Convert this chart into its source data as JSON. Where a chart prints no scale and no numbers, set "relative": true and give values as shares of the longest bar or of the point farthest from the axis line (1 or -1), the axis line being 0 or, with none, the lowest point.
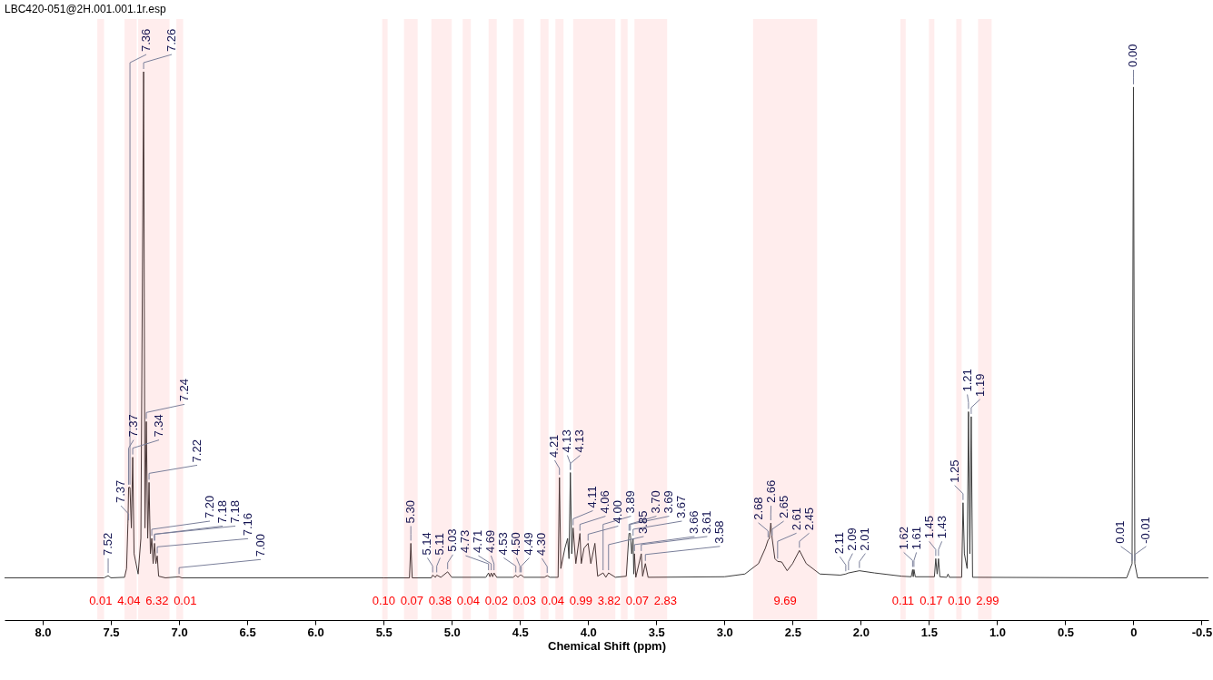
{
  "chart_data": {
    "type": "line",
    "title": "LBC420-051@2H.001.001.1r.esp",
    "xlabel": "Chemical Shift (ppm)",
    "relative": true,
    "color": "#3c3c3c",
    "xlim": [
      8.28,
      -0.55
    ],
    "xticks": [
      {
        "value": 8,
        "label": "8.0"
      },
      7.5,
      {
        "value": 7,
        "label": "7.0"
      },
      6.5,
      {
        "value": 6,
        "label": "6.0"
      },
      5.5,
      {
        "value": 5,
        "label": "5.0"
      },
      4.5,
      {
        "value": 4,
        "label": "4.0"
      },
      3.5,
      {
        "value": 3,
        "label": "3.0"
      },
      2.5,
      {
        "value": 2,
        "label": "2.0"
      },
      1.5,
      {
        "value": 1,
        "label": "1.0"
      },
      0.5,
      0,
      -0.5
    ],
    "x": [
      8.28,
      7.55,
      7.52,
      7.5,
      7.4,
      7.385,
      7.375,
      7.37,
      7.36,
      7.35,
      7.34,
      7.33,
      7.3,
      7.28,
      7.26,
      7.25,
      7.24,
      7.23,
      7.22,
      7.21,
      7.2,
      7.19,
      7.18,
      7.17,
      7.16,
      7.15,
      7.1,
      7.0,
      6.98,
      5.5,
      5.31,
      5.3,
      5.29,
      5.15,
      5.14,
      5.12,
      5.11,
      5.08,
      5.03,
      5.0,
      4.75,
      4.73,
      4.72,
      4.71,
      4.7,
      4.69,
      4.67,
      4.55,
      4.53,
      4.515,
      4.5,
      4.49,
      4.47,
      4.32,
      4.3,
      4.28,
      4.22,
      4.21,
      4.2,
      4.17,
      4.15,
      4.14,
      4.13,
      4.12,
      4.11,
      4.09,
      4.06,
      4.05,
      4.03,
      4.0,
      3.98,
      3.95,
      3.93,
      3.89,
      3.87,
      3.85,
      3.8,
      3.72,
      3.7,
      3.69,
      3.68,
      3.67,
      3.665,
      3.66,
      3.65,
      3.61,
      3.6,
      3.58,
      3.56,
      3.0,
      2.85,
      2.75,
      2.7,
      2.68,
      2.67,
      2.66,
      2.65,
      2.63,
      2.61,
      2.58,
      2.54,
      2.5,
      2.45,
      2.4,
      2.3,
      2.15,
      2.11,
      2.09,
      2.01,
      1.9,
      1.7,
      1.63,
      1.62,
      1.615,
      1.61,
      1.6,
      1.46,
      1.45,
      1.44,
      1.43,
      1.42,
      1.37,
      1.36,
      1.35,
      1.26,
      1.25,
      1.24,
      1.22,
      1.21,
      1.2,
      1.19,
      1.18,
      0.05,
      0.01,
      0,
      -0.01,
      -0.03,
      -0.55
    ],
    "values": [
      0.077,
      0.077,
      0.081,
      0.077,
      0.078,
      0.094,
      0.177,
      0.242,
      0.242,
      0.168,
      0.297,
      0.121,
      0.084,
      0.149,
      1.0,
      0.168,
      0.362,
      0.149,
      0.251,
      0.121,
      0.149,
      0.103,
      0.14,
      0.103,
      0.117,
      0.08,
      0.077,
      0.079,
      0.077,
      0.077,
      0.077,
      0.14,
      0.077,
      0.077,
      0.082,
      0.078,
      0.082,
      0.078,
      0.088,
      0.078,
      0.078,
      0.086,
      0.079,
      0.086,
      0.079,
      0.086,
      0.078,
      0.078,
      0.082,
      0.078,
      0.082,
      0.082,
      0.078,
      0.078,
      0.081,
      0.078,
      0.078,
      0.26,
      0.094,
      0.131,
      0.149,
      0.112,
      0.269,
      0.121,
      0.168,
      0.103,
      0.158,
      0.103,
      0.131,
      0.14,
      0.103,
      0.14,
      0.08,
      0.086,
      0.078,
      0.086,
      0.078,
      0.08,
      0.158,
      0.158,
      0.121,
      0.149,
      0.084,
      0.121,
      0.078,
      0.121,
      0.08,
      0.103,
      0.078,
      0.079,
      0.084,
      0.103,
      0.131,
      0.146,
      0.149,
      0.177,
      0.149,
      0.112,
      0.107,
      0.106,
      0.09,
      0.103,
      0.127,
      0.103,
      0.084,
      0.082,
      0.084,
      0.086,
      0.09,
      0.086,
      0.08,
      0.079,
      0.092,
      0.079,
      0.092,
      0.079,
      0.079,
      0.112,
      0.084,
      0.112,
      0.079,
      0.078,
      0.084,
      0.078,
      0.078,
      0.214,
      0.121,
      0.094,
      0.38,
      0.121,
      0.371,
      0.078,
      0.077,
      0.103,
      0.972,
      0.103,
      0.077,
      0.077
    ],
    "bands": [
      {
        "axis": "x",
        "from": 7.6,
        "to": 7.55,
        "label": "0.01",
        "color": "#ff0000"
      },
      {
        "axis": "x",
        "from": 7.4,
        "to": 7.31,
        "label": "4.04",
        "color": "#ff0000"
      },
      {
        "axis": "x",
        "from": 7.3,
        "to": 7.07,
        "label": "6.32",
        "color": "#ff0000"
      },
      {
        "axis": "x",
        "from": 7.02,
        "to": 6.97,
        "label": "0.01",
        "color": "#ff0000"
      },
      {
        "axis": "x",
        "from": 5.51,
        "to": 5.47,
        "label": "0.10",
        "color": "#ff0000"
      },
      {
        "axis": "x",
        "from": 5.35,
        "to": 5.25,
        "label": "0.07",
        "color": "#ff0000"
      },
      {
        "axis": "x",
        "from": 5.15,
        "to": 5.0,
        "label": "0.38",
        "color": "#ff0000"
      },
      {
        "axis": "x",
        "from": 4.92,
        "to": 4.86,
        "label": "0.04",
        "color": "#ff0000"
      },
      {
        "axis": "x",
        "from": 4.73,
        "to": 4.67,
        "label": "0.02",
        "color": "#ff0000"
      },
      {
        "axis": "x",
        "from": 4.55,
        "to": 4.47,
        "label": "0.03",
        "color": "#ff0000"
      },
      {
        "axis": "x",
        "from": 4.35,
        "to": 4.29,
        "label": "0.04",
        "color": "#ff0000"
      },
      {
        "axis": "x",
        "from": 4.24,
        "to": 4.18,
        "label": "0.99",
        "color": "#ff0000"
      },
      {
        "axis": "x",
        "from": 4.11,
        "to": 3.8,
        "label": "3.82",
        "color": "#ff0000"
      },
      {
        "axis": "x",
        "from": 3.76,
        "to": 3.71,
        "label": "0.07",
        "color": "#ff0000"
      },
      {
        "axis": "x",
        "from": 3.66,
        "to": 3.42,
        "label": "2.83",
        "color": "#ff0000"
      },
      {
        "axis": "x",
        "from": 2.79,
        "to": 2.32,
        "label": "9.69",
        "color": "#ff0000"
      },
      {
        "axis": "x",
        "from": 1.71,
        "to": 1.67,
        "label": "0.11",
        "color": "#ff0000"
      },
      {
        "axis": "x",
        "from": 1.5,
        "to": 1.46,
        "label": "0.17",
        "color": "#ff0000"
      },
      {
        "axis": "x",
        "from": 1.3,
        "to": 1.26,
        "label": "0.10",
        "color": "#ff0000"
      },
      {
        "axis": "x",
        "from": 1.14,
        "to": 1.04,
        "label": "2.99",
        "color": "#ff0000"
      }
    ],
    "annotations": [
      {
        "text": "7.52",
        "x": 7.52,
        "y": 0.081
      },
      {
        "text": "7.37",
        "x": 7.37,
        "y": 0.177
      },
      {
        "text": "7.37",
        "x": 7.37,
        "y": 0.242
      },
      {
        "text": "7.36",
        "x": 7.36,
        "y": 0.242
      },
      {
        "text": "7.34",
        "x": 7.34,
        "y": 0.297
      },
      {
        "text": "7.26",
        "x": 7.26,
        "y": 1.0
      },
      {
        "text": "7.24",
        "x": 7.24,
        "y": 0.362
      },
      {
        "text": "7.22",
        "x": 7.22,
        "y": 0.251
      },
      {
        "text": "7.20",
        "x": 7.2,
        "y": 0.149
      },
      {
        "text": "7.18",
        "x": 7.18,
        "y": 0.14
      },
      {
        "text": "7.18",
        "x": 7.18,
        "y": 0.14
      },
      {
        "text": "7.16",
        "x": 7.16,
        "y": 0.117
      },
      {
        "text": "7.00",
        "x": 7.0,
        "y": 0.079
      },
      {
        "text": "5.30",
        "x": 5.3,
        "y": 0.14
      },
      {
        "text": "5.14",
        "x": 5.14,
        "y": 0.082
      },
      {
        "text": "5.11",
        "x": 5.11,
        "y": 0.082
      },
      {
        "text": "5.03",
        "x": 5.03,
        "y": 0.088
      },
      {
        "text": "4.73",
        "x": 4.73,
        "y": 0.086
      },
      {
        "text": "4.71",
        "x": 4.71,
        "y": 0.086
      },
      {
        "text": "4.69",
        "x": 4.69,
        "y": 0.086
      },
      {
        "text": "4.53",
        "x": 4.53,
        "y": 0.082
      },
      {
        "text": "4.50",
        "x": 4.5,
        "y": 0.082
      },
      {
        "text": "4.49",
        "x": 4.49,
        "y": 0.082
      },
      {
        "text": "4.30",
        "x": 4.3,
        "y": 0.081
      },
      {
        "text": "4.21",
        "x": 4.21,
        "y": 0.26
      },
      {
        "text": "4.13",
        "x": 4.13,
        "y": 0.269
      },
      {
        "text": "4.13",
        "x": 4.13,
        "y": 0.269
      },
      {
        "text": "4.11",
        "x": 4.11,
        "y": 0.168
      },
      {
        "text": "4.06",
        "x": 4.06,
        "y": 0.158
      },
      {
        "text": "4.00",
        "x": 4.0,
        "y": 0.14
      },
      {
        "text": "3.89",
        "x": 3.89,
        "y": 0.086
      },
      {
        "text": "3.85",
        "x": 3.85,
        "y": 0.086
      },
      {
        "text": "3.70",
        "x": 3.7,
        "y": 0.158
      },
      {
        "text": "3.69",
        "x": 3.69,
        "y": 0.158
      },
      {
        "text": "3.67",
        "x": 3.67,
        "y": 0.149
      },
      {
        "text": "3.66",
        "x": 3.66,
        "y": 0.121
      },
      {
        "text": "3.61",
        "x": 3.61,
        "y": 0.121
      },
      {
        "text": "3.58",
        "x": 3.58,
        "y": 0.103
      },
      {
        "text": "2.68",
        "x": 2.68,
        "y": 0.146
      },
      {
        "text": "2.66",
        "x": 2.66,
        "y": 0.177
      },
      {
        "text": "2.65",
        "x": 2.65,
        "y": 0.149
      },
      {
        "text": "2.61",
        "x": 2.61,
        "y": 0.107
      },
      {
        "text": "2.45",
        "x": 2.45,
        "y": 0.127
      },
      {
        "text": "2.11",
        "x": 2.11,
        "y": 0.084
      },
      {
        "text": "2.09",
        "x": 2.09,
        "y": 0.086
      },
      {
        "text": "2.01",
        "x": 2.01,
        "y": 0.09
      },
      {
        "text": "1.62",
        "x": 1.62,
        "y": 0.092
      },
      {
        "text": "1.61",
        "x": 1.61,
        "y": 0.092
      },
      {
        "text": "1.45",
        "x": 1.45,
        "y": 0.112
      },
      {
        "text": "1.43",
        "x": 1.43,
        "y": 0.112
      },
      {
        "text": "1.25",
        "x": 1.25,
        "y": 0.214
      },
      {
        "text": "1.21",
        "x": 1.21,
        "y": 0.38
      },
      {
        "text": "1.19",
        "x": 1.19,
        "y": 0.371
      },
      {
        "text": "0.01",
        "x": 0.01,
        "y": 0.103
      },
      {
        "text": "0.00",
        "x": 0,
        "y": 0.972
      },
      {
        "text": "-0.01",
        "x": -0.01,
        "y": 0.103
      }
    ]
  }
}
